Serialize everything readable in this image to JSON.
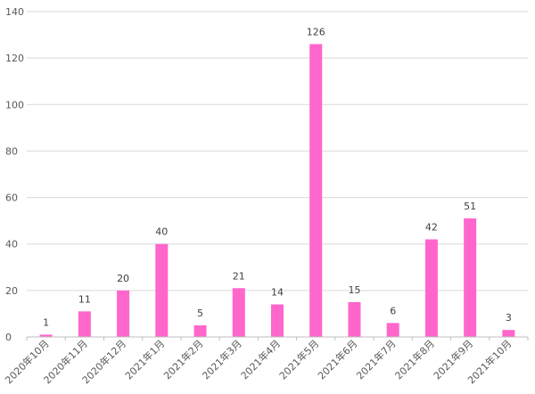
{
  "chart_data": {
    "type": "bar",
    "categories": [
      "2020年10月",
      "2020年11月",
      "2020年12月",
      "2021年1月",
      "2021年2月",
      "2021年3月",
      "2021年4月",
      "2021年5月",
      "2021年6月",
      "2021年7月",
      "2021年8月",
      "2021年9月",
      "2021年10月"
    ],
    "values": [
      1,
      11,
      20,
      40,
      5,
      21,
      14,
      126,
      15,
      6,
      42,
      51,
      3
    ],
    "title": "",
    "xlabel": "",
    "ylabel": "",
    "ylim": [
      0,
      140
    ],
    "yticks": [
      0,
      20,
      40,
      60,
      80,
      100,
      120,
      140
    ],
    "grid": true,
    "legend": "none",
    "bar_color": "#ff66cc"
  }
}
